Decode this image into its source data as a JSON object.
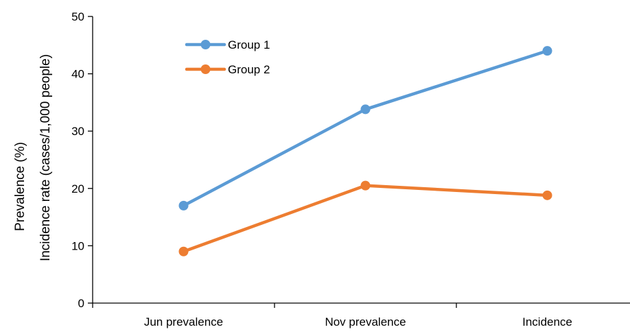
{
  "chart_data": {
    "type": "line",
    "title": "",
    "categories": [
      "Jun prevalence",
      "Nov prevalence",
      "Incidence"
    ],
    "series": [
      {
        "name": "Group 1",
        "values": [
          17,
          33.8,
          44
        ],
        "color": "#5B9BD5"
      },
      {
        "name": "Group 2",
        "values": [
          9,
          20.5,
          18.8
        ],
        "color": "#ED7D31"
      }
    ],
    "ylabel": [
      "Prevalence (%)",
      "Incidence rate (cases/1,000 people)"
    ],
    "xlabel": "",
    "ylim": [
      0,
      50
    ],
    "yticks": [
      0,
      10,
      20,
      30,
      40,
      50
    ],
    "grid": false,
    "legend_position": "top-left",
    "marker": "circle"
  }
}
